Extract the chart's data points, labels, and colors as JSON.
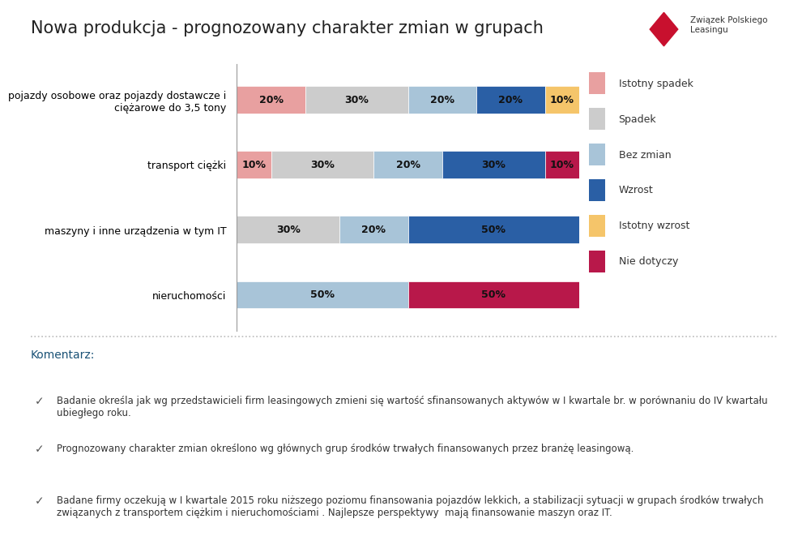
{
  "title": "Nowa produkcja - prognozowany charakter zmian w grupach",
  "categories": [
    "pojazdy osobowe oraz pojazdy dostawcze i\nciężarowe do 3,5 tony",
    "transport ciężki",
    "maszyny i inne urządzenia w tym IT",
    "nieruchomości"
  ],
  "legend_labels": [
    "Istotny spadek",
    "Spadek",
    "Bez zmian",
    "Wzrost",
    "Istotny wzrost",
    "Nie dotyczy"
  ],
  "colors": [
    "#E8A0A0",
    "#CCCCCC",
    "#A8C4D8",
    "#2A5FA5",
    "#F5C56A",
    "#B8184A"
  ],
  "data": [
    [
      20,
      30,
      20,
      20,
      10,
      0
    ],
    [
      10,
      30,
      20,
      30,
      0,
      10
    ],
    [
      0,
      30,
      20,
      50,
      0,
      0
    ],
    [
      0,
      0,
      50,
      0,
      0,
      50
    ]
  ],
  "bar_labels": [
    [
      "20%",
      "30%",
      "20%",
      "20%",
      "10%",
      ""
    ],
    [
      "10%",
      "30%",
      "20%",
      "30%",
      "",
      "10%"
    ],
    [
      "",
      "30%",
      "20%",
      "50%",
      "",
      ""
    ],
    [
      "",
      "",
      "50%",
      "",
      "",
      "50%"
    ]
  ],
  "background_color": "#FFFFFF",
  "title_fontsize": 15,
  "label_fontsize": 9,
  "category_fontsize": 9,
  "legend_fontsize": 9,
  "comment_title": "Komentarz:",
  "comment_bullets": [
    "Badanie określa jak wg przedstawicieli firm leasingowych zmieni się wartość sfinansowanych aktywów w I kwartale br. w porównaniu do IV kwartału ubiegłego roku.",
    "Prognozowany charakter zmian określono wg głównych grup środków trwałych finansowanych przez branżę leasingową.",
    "Badane firmy oczekują w I kwartale 2015 roku niższego poziomu finansowania pojazdów lekkich, a stabilizacji sytuacji w grupach środków trwałych związanych z transportem ciężkim i nieruchomościami . Najlepsze perspektywy  mają finansowanie maszyn oraz IT."
  ]
}
